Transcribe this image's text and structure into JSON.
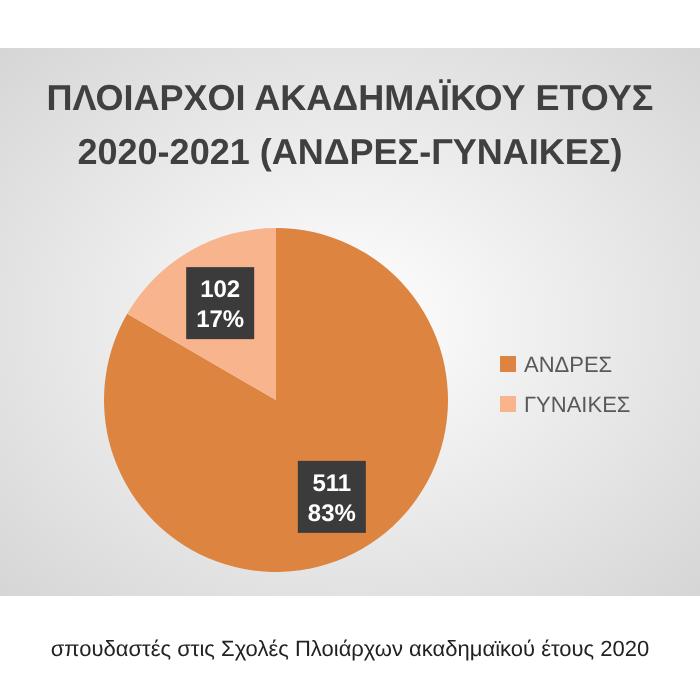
{
  "chart_data": {
    "type": "pie",
    "title": "ΠΛΟΙΑΡΧΟΙ ΑΚΑΔΗΜΑΪΚΟΥ ΕΤΟΥΣ 2020-2021 (ΑΝΔΡΕΣ-ΓΥΝΑΙΚΕΣ)",
    "categories": [
      "ΑΝΔΡΕΣ",
      "ΓΥΝΑΙΚΕΣ"
    ],
    "values": [
      511,
      102
    ],
    "colors": [
      "#dd8440",
      "#f8b48d"
    ],
    "value_labels": [
      "511 83%",
      "102 17%"
    ],
    "legend": "right",
    "annotations": [
      "σπουδαστές στις Σχολές Πλοιάρχων ακαδημαϊκού έτους 2020"
    ]
  }
}
